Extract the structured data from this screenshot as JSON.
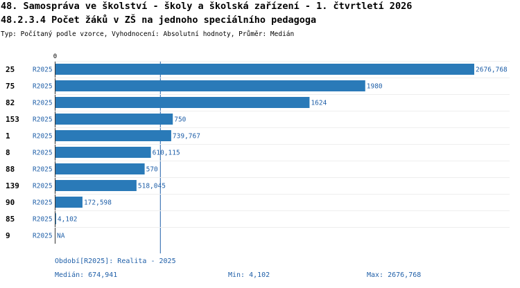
{
  "header": {
    "title": "48. Samospráva ve školství - školy a školská zařízení - 1. čtvrtletí 2026",
    "subtitle": "48.2.3.4 Počet žáků v ZŠ na jednoho speciálního pedagoga",
    "type_line": "Typ: Počítaný podle vzorce, Vyhodnocení: Absolutní hodnoty, Průměr: Medián"
  },
  "chart_data": {
    "type": "bar",
    "orientation": "horizontal",
    "axis_zero_label": "0",
    "xlim": [
      0,
      2676.768
    ],
    "median": 674.941,
    "bar_color": "#2a7ab8",
    "label_color": "#1f5fa8",
    "rows": [
      {
        "id": "25",
        "series": "R2025",
        "value": 2676.768,
        "label": "2676,768"
      },
      {
        "id": "75",
        "series": "R2025",
        "value": 1980,
        "label": "1980"
      },
      {
        "id": "82",
        "series": "R2025",
        "value": 1624,
        "label": "1624"
      },
      {
        "id": "153",
        "series": "R2025",
        "value": 750,
        "label": "750"
      },
      {
        "id": "1",
        "series": "R2025",
        "value": 739.767,
        "label": "739,767"
      },
      {
        "id": "8",
        "series": "R2025",
        "value": 610.115,
        "label": "610,115"
      },
      {
        "id": "88",
        "series": "R2025",
        "value": 570,
        "label": "570"
      },
      {
        "id": "139",
        "series": "R2025",
        "value": 518.045,
        "label": "518,045"
      },
      {
        "id": "90",
        "series": "R2025",
        "value": 172.598,
        "label": "172,598"
      },
      {
        "id": "85",
        "series": "R2025",
        "value": 4.102,
        "label": "4,102"
      },
      {
        "id": "9",
        "series": "R2025",
        "value": null,
        "label": "NA"
      }
    ]
  },
  "footer": {
    "period": "Období[R2025]: Realita - 2025",
    "median": "Medián: 674,941",
    "min": "Min: 4,102",
    "max": "Max: 2676,768"
  }
}
